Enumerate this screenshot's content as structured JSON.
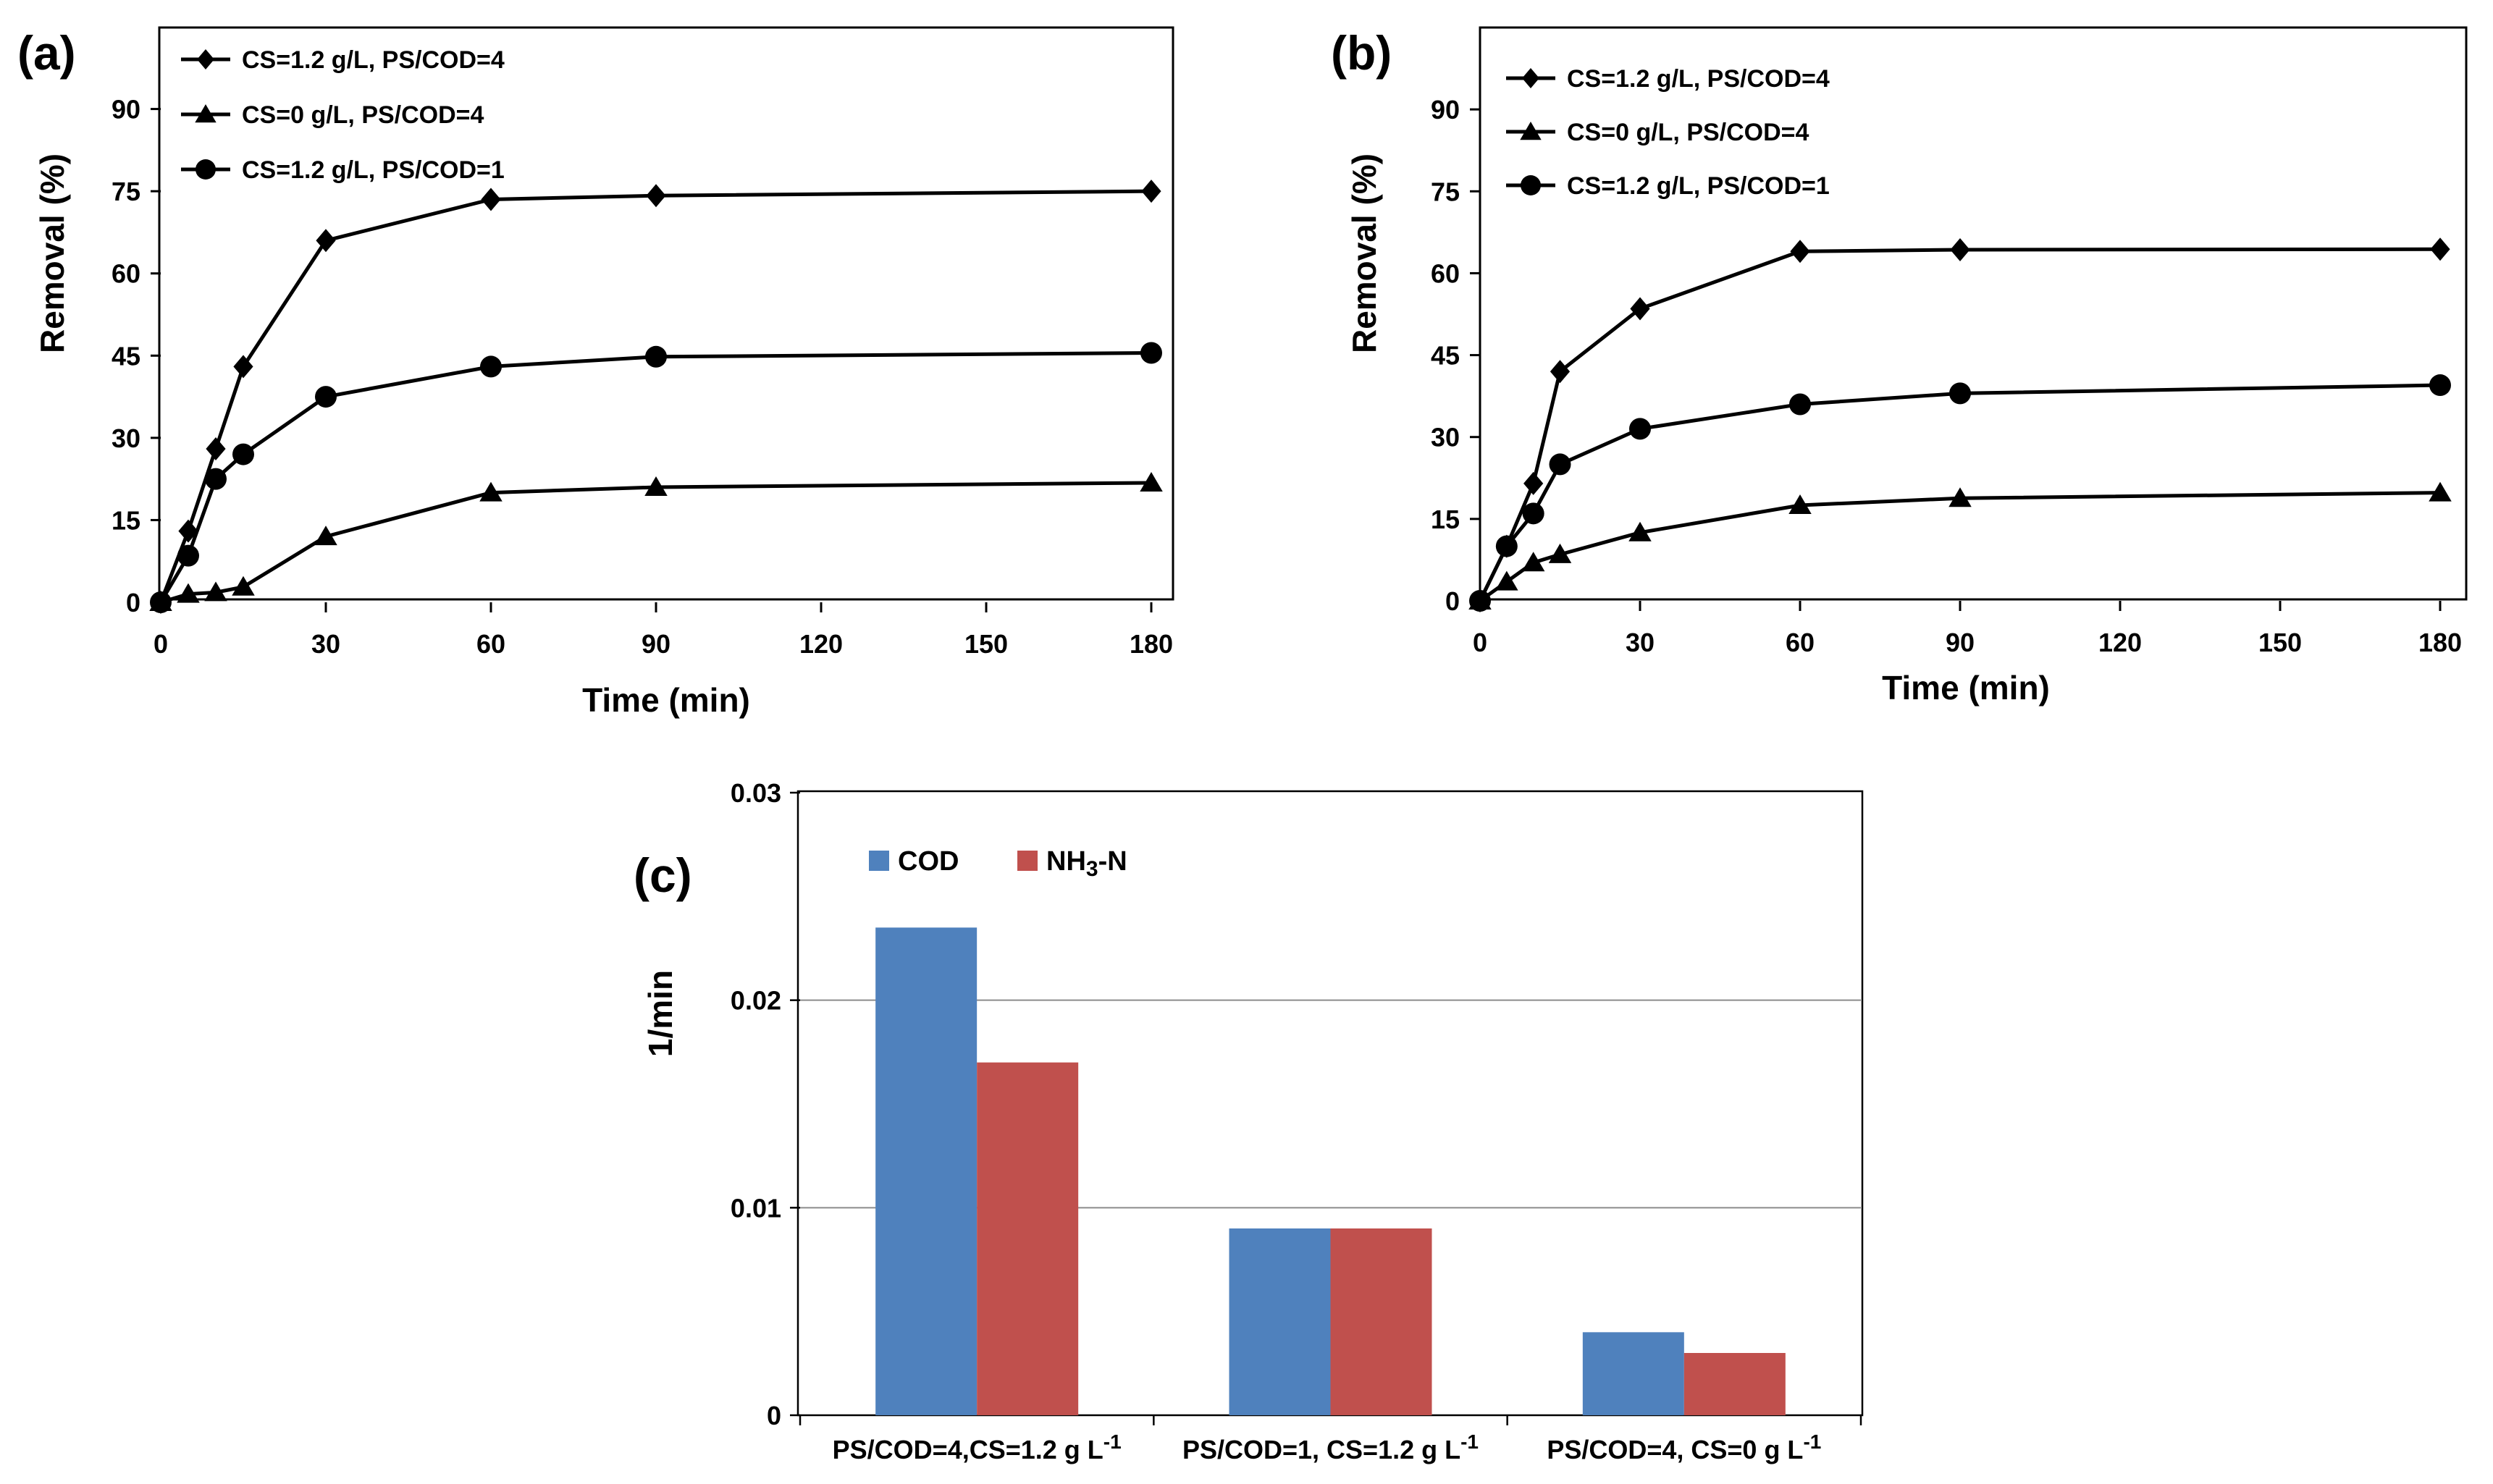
{
  "figure": {
    "panel_a": "(a)",
    "panel_b": "(b)",
    "panel_c": "(c)"
  },
  "chart_data": [
    {
      "id": "a",
      "type": "line",
      "title": "(a)",
      "xlabel": "Time (min)",
      "ylabel": "Removal (%)",
      "x": [
        0,
        5,
        10,
        15,
        30,
        60,
        90,
        180
      ],
      "xticks": [
        0,
        30,
        60,
        90,
        120,
        150,
        180
      ],
      "xlim": [
        0,
        180
      ],
      "yticks": [
        0,
        15,
        30,
        45,
        60,
        75,
        90
      ],
      "ylim": [
        0,
        105
      ],
      "legend": "top-left",
      "series": [
        {
          "name": "CS=1.2 g/L, PS/COD=4",
          "marker": "diamond",
          "values": [
            0,
            13,
            28,
            43,
            66,
            73.5,
            74.2,
            75
          ]
        },
        {
          "name": "CS=0    g/L, PS/COD=4",
          "marker": "triangle",
          "values": [
            0,
            1.5,
            1.8,
            2.8,
            12,
            20,
            21,
            21.8
          ]
        },
        {
          "name": "CS=1.2 g/L, PS/COD=1",
          "marker": "circle",
          "values": [
            0,
            8.5,
            22.5,
            27,
            37.5,
            43,
            44.8,
            45.5
          ]
        }
      ]
    },
    {
      "id": "b",
      "type": "line",
      "title": "(b)",
      "xlabel": "Time (min)",
      "ylabel": "Removal (%)",
      "x": [
        0,
        5,
        10,
        15,
        30,
        60,
        90,
        180
      ],
      "xticks": [
        0,
        30,
        60,
        90,
        120,
        150,
        180
      ],
      "xlim": [
        0,
        180
      ],
      "yticks": [
        0,
        15,
        30,
        45,
        60,
        75,
        90
      ],
      "ylim": [
        0,
        105
      ],
      "legend": "top-left",
      "series": [
        {
          "name": "CS=1.2 g/L, PS/COD=4",
          "marker": "diamond",
          "values": [
            0,
            10,
            21.5,
            42,
            53.5,
            64,
            64.3,
            64.4
          ]
        },
        {
          "name": "CS=0    g/L, PS/COD=4",
          "marker": "triangle",
          "values": [
            0,
            3.5,
            7,
            8.5,
            12.5,
            17.5,
            18.8,
            19.8
          ]
        },
        {
          "name": "CS=1.2 g/L, PS/COD=1",
          "marker": "circle",
          "values": [
            0,
            10,
            16,
            25,
            31.5,
            36,
            38,
            39.5
          ]
        }
      ]
    },
    {
      "id": "c",
      "type": "bar",
      "title": "(c)",
      "xlabel": "",
      "ylabel": "1/min",
      "categories": [
        {
          "main": "PS/COD=4,CS=1.2 g L",
          "sup": "-1"
        },
        {
          "main": "PS/COD=1, CS=1.2 g L",
          "sup": "-1"
        },
        {
          "main": "PS/COD=4, CS=0 g L",
          "sup": "-1"
        }
      ],
      "yticks": [
        "0",
        "0.01",
        "0.02",
        "0.03"
      ],
      "ylim": [
        0,
        0.03
      ],
      "grid": true,
      "legend": "top-left",
      "colors": {
        "COD": "#4f81bd",
        "NH3-N": "#c0504d"
      },
      "series": [
        {
          "name": "COD",
          "legend_main": "COD",
          "legend_sub": "",
          "legend_tail": "",
          "values": [
            0.0235,
            0.009,
            0.004
          ]
        },
        {
          "name": "NH3-N",
          "legend_main": "NH",
          "legend_sub": "3",
          "legend_tail": "-N",
          "values": [
            0.017,
            0.009,
            0.003
          ]
        }
      ]
    }
  ]
}
